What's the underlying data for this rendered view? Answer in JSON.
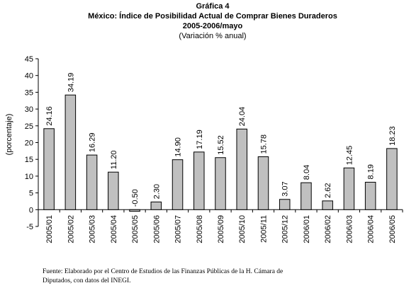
{
  "chart_data": {
    "type": "bar",
    "title": "Gráfica 4",
    "subtitle": "México: Índice de Posibilidad Actual de Comprar Bienes Duraderos",
    "period": "2005-2006/mayo",
    "note": "(Variación % anual)",
    "y_label": "(porcentaje)",
    "categories": [
      "2005/01",
      "2005/02",
      "2005/03",
      "2005/04",
      "2005/05",
      "2005/06",
      "2005/07",
      "2005/08",
      "2005/09",
      "2005/10",
      "2005/11",
      "2005/12",
      "2006/01",
      "2006/02",
      "2006/03",
      "2006/04",
      "2006/05"
    ],
    "values": [
      24.16,
      34.19,
      16.29,
      11.2,
      -0.5,
      2.3,
      14.9,
      17.19,
      15.52,
      24.04,
      15.78,
      3.07,
      8.04,
      2.62,
      12.45,
      8.19,
      18.23
    ],
    "value_labels": [
      "24.16",
      "34.19",
      "16.29",
      "11.20",
      "-0.50",
      "2.30",
      "14.90",
      "17.19",
      "15.52",
      "24.04",
      "15.78",
      "3.07",
      "8.04",
      "2.62",
      "12.45",
      "8.19",
      "18.23"
    ],
    "color": "#c0c0c0",
    "ylim": [
      -5,
      45
    ],
    "yticks": [
      -5,
      0,
      5,
      10,
      15,
      20,
      25,
      30,
      35,
      40,
      45
    ],
    "grid": false,
    "source": [
      "Fuente: Elaborado por el Centro de Estudios de las Finanzas Públicas de la H. Cámara de",
      "Diputados, con datos del INEGI."
    ]
  }
}
